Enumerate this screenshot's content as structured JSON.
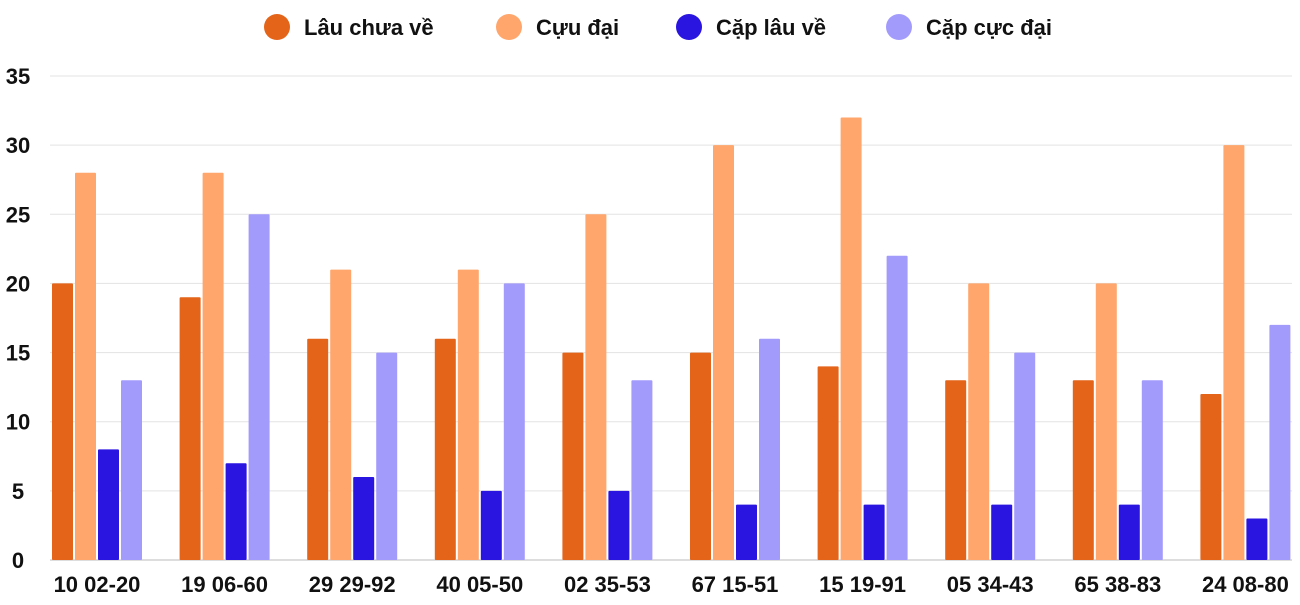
{
  "chart_data": {
    "type": "bar",
    "title": "",
    "xlabel": "",
    "ylabel": "",
    "ylim": [
      0,
      35
    ],
    "yticks": [
      0,
      5,
      10,
      15,
      20,
      25,
      30,
      35
    ],
    "grid": true,
    "legend_position": "top-center",
    "categories": [
      "10 02-20",
      "19 06-60",
      "29 29-92",
      "40 05-50",
      "02 35-53",
      "67 15-51",
      "15 19-91",
      "05 34-43",
      "65 38-83",
      "24 08-80"
    ],
    "series": [
      {
        "name": "Lâu chưa về",
        "color": "#e4641a",
        "values": [
          20,
          19,
          16,
          16,
          15,
          15,
          14,
          13,
          13,
          12
        ]
      },
      {
        "name": "Cựu đại",
        "color": "#ffa66c",
        "values": [
          28,
          28,
          21,
          21,
          25,
          30,
          32,
          20,
          20,
          30
        ]
      },
      {
        "name": "Cặp lâu về",
        "color": "#2a14e0",
        "values": [
          8,
          7,
          6,
          5,
          5,
          4,
          4,
          4,
          4,
          3
        ]
      },
      {
        "name": "Cặp cực đại",
        "color": "#a39bfc",
        "values": [
          13,
          25,
          15,
          20,
          13,
          16,
          22,
          15,
          13,
          17
        ]
      }
    ]
  }
}
